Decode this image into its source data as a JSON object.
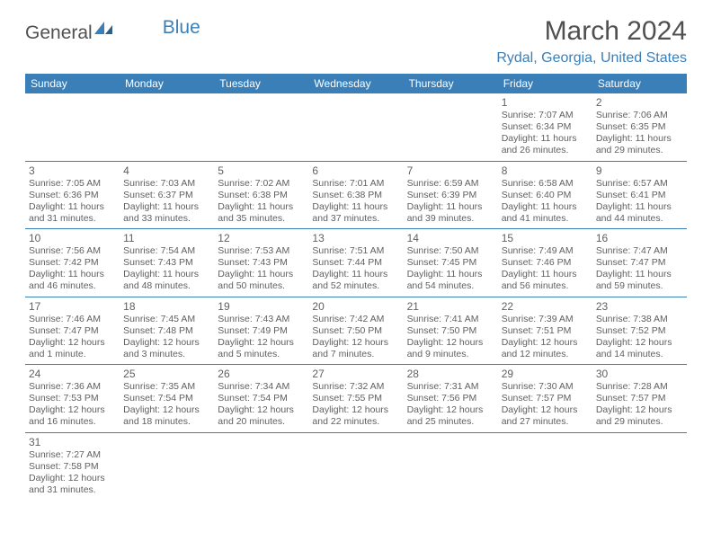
{
  "logo": {
    "text1": "General",
    "text2": "Blue"
  },
  "title": "March 2024",
  "location": "Rydal, Georgia, United States",
  "colors": {
    "header_bg": "#3b7fb8",
    "header_fg": "#ffffff",
    "text": "#606060",
    "accent": "#3b7fb8"
  },
  "weekdays": [
    "Sunday",
    "Monday",
    "Tuesday",
    "Wednesday",
    "Thursday",
    "Friday",
    "Saturday"
  ],
  "weeks": [
    [
      null,
      null,
      null,
      null,
      null,
      {
        "n": "1",
        "sunrise": "7:07 AM",
        "sunset": "6:34 PM",
        "day": "11 hours and 26 minutes."
      },
      {
        "n": "2",
        "sunrise": "7:06 AM",
        "sunset": "6:35 PM",
        "day": "11 hours and 29 minutes."
      }
    ],
    [
      {
        "n": "3",
        "sunrise": "7:05 AM",
        "sunset": "6:36 PM",
        "day": "11 hours and 31 minutes."
      },
      {
        "n": "4",
        "sunrise": "7:03 AM",
        "sunset": "6:37 PM",
        "day": "11 hours and 33 minutes."
      },
      {
        "n": "5",
        "sunrise": "7:02 AM",
        "sunset": "6:38 PM",
        "day": "11 hours and 35 minutes."
      },
      {
        "n": "6",
        "sunrise": "7:01 AM",
        "sunset": "6:38 PM",
        "day": "11 hours and 37 minutes."
      },
      {
        "n": "7",
        "sunrise": "6:59 AM",
        "sunset": "6:39 PM",
        "day": "11 hours and 39 minutes."
      },
      {
        "n": "8",
        "sunrise": "6:58 AM",
        "sunset": "6:40 PM",
        "day": "11 hours and 41 minutes."
      },
      {
        "n": "9",
        "sunrise": "6:57 AM",
        "sunset": "6:41 PM",
        "day": "11 hours and 44 minutes."
      }
    ],
    [
      {
        "n": "10",
        "sunrise": "7:56 AM",
        "sunset": "7:42 PM",
        "day": "11 hours and 46 minutes."
      },
      {
        "n": "11",
        "sunrise": "7:54 AM",
        "sunset": "7:43 PM",
        "day": "11 hours and 48 minutes."
      },
      {
        "n": "12",
        "sunrise": "7:53 AM",
        "sunset": "7:43 PM",
        "day": "11 hours and 50 minutes."
      },
      {
        "n": "13",
        "sunrise": "7:51 AM",
        "sunset": "7:44 PM",
        "day": "11 hours and 52 minutes."
      },
      {
        "n": "14",
        "sunrise": "7:50 AM",
        "sunset": "7:45 PM",
        "day": "11 hours and 54 minutes."
      },
      {
        "n": "15",
        "sunrise": "7:49 AM",
        "sunset": "7:46 PM",
        "day": "11 hours and 56 minutes."
      },
      {
        "n": "16",
        "sunrise": "7:47 AM",
        "sunset": "7:47 PM",
        "day": "11 hours and 59 minutes."
      }
    ],
    [
      {
        "n": "17",
        "sunrise": "7:46 AM",
        "sunset": "7:47 PM",
        "day": "12 hours and 1 minute."
      },
      {
        "n": "18",
        "sunrise": "7:45 AM",
        "sunset": "7:48 PM",
        "day": "12 hours and 3 minutes."
      },
      {
        "n": "19",
        "sunrise": "7:43 AM",
        "sunset": "7:49 PM",
        "day": "12 hours and 5 minutes."
      },
      {
        "n": "20",
        "sunrise": "7:42 AM",
        "sunset": "7:50 PM",
        "day": "12 hours and 7 minutes."
      },
      {
        "n": "21",
        "sunrise": "7:41 AM",
        "sunset": "7:50 PM",
        "day": "12 hours and 9 minutes."
      },
      {
        "n": "22",
        "sunrise": "7:39 AM",
        "sunset": "7:51 PM",
        "day": "12 hours and 12 minutes."
      },
      {
        "n": "23",
        "sunrise": "7:38 AM",
        "sunset": "7:52 PM",
        "day": "12 hours and 14 minutes."
      }
    ],
    [
      {
        "n": "24",
        "sunrise": "7:36 AM",
        "sunset": "7:53 PM",
        "day": "12 hours and 16 minutes."
      },
      {
        "n": "25",
        "sunrise": "7:35 AM",
        "sunset": "7:54 PM",
        "day": "12 hours and 18 minutes."
      },
      {
        "n": "26",
        "sunrise": "7:34 AM",
        "sunset": "7:54 PM",
        "day": "12 hours and 20 minutes."
      },
      {
        "n": "27",
        "sunrise": "7:32 AM",
        "sunset": "7:55 PM",
        "day": "12 hours and 22 minutes."
      },
      {
        "n": "28",
        "sunrise": "7:31 AM",
        "sunset": "7:56 PM",
        "day": "12 hours and 25 minutes."
      },
      {
        "n": "29",
        "sunrise": "7:30 AM",
        "sunset": "7:57 PM",
        "day": "12 hours and 27 minutes."
      },
      {
        "n": "30",
        "sunrise": "7:28 AM",
        "sunset": "7:57 PM",
        "day": "12 hours and 29 minutes."
      }
    ],
    [
      {
        "n": "31",
        "sunrise": "7:27 AM",
        "sunset": "7:58 PM",
        "day": "12 hours and 31 minutes."
      },
      null,
      null,
      null,
      null,
      null,
      null
    ]
  ],
  "labels": {
    "sunrise": "Sunrise:",
    "sunset": "Sunset:",
    "daylight": "Daylight:"
  }
}
